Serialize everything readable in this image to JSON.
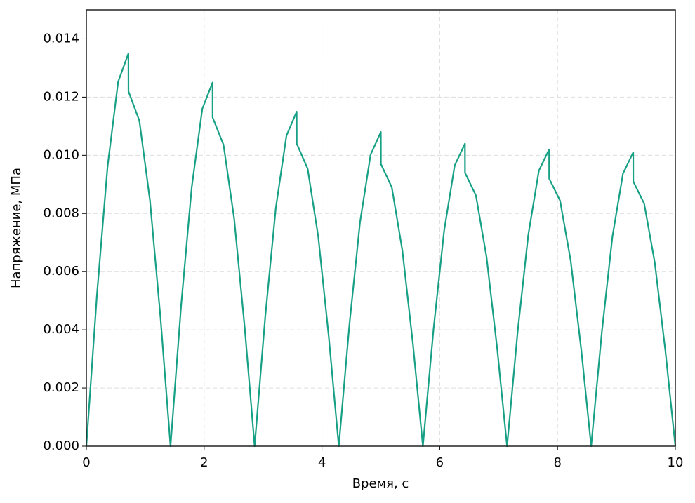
{
  "chart_data": {
    "type": "line",
    "xlabel": "Время, с",
    "ylabel": "Напряжение, МПа",
    "x": [
      0,
      0.18,
      0.36,
      0.54,
      0.714,
      0.715,
      0.9,
      1.08,
      1.26,
      1.429,
      1.609,
      1.789,
      1.969,
      2.143,
      2.144,
      2.329,
      2.509,
      2.689,
      2.857,
      3.037,
      3.217,
      3.397,
      3.571,
      3.572,
      3.757,
      3.937,
      4.117,
      4.286,
      4.466,
      4.646,
      4.826,
      5,
      5.001,
      5.186,
      5.366,
      5.546,
      5.714,
      5.894,
      6.074,
      6.254,
      6.428,
      6.429,
      6.614,
      6.794,
      6.974,
      7.143,
      7.323,
      7.503,
      7.683,
      7.857,
      7.858,
      8.043,
      8.223,
      8.403,
      8.571,
      8.751,
      8.931,
      9.111,
      9.285,
      9.286,
      9.471,
      9.651,
      9.831,
      10
    ],
    "series": [
      {
        "color": "#17a085",
        "values": [
          0,
          0.00521,
          0.00961,
          0.01253,
          0.0135,
          0.0122,
          0.01119,
          0.00845,
          0.00439,
          0,
          0.00483,
          0.0089,
          0.0116,
          0.0125,
          0.0113,
          0.01036,
          0.00783,
          0.00407,
          0,
          0.00444,
          0.00819,
          0.01067,
          0.0115,
          0.0104,
          0.00954,
          0.00721,
          0.00374,
          0,
          0.00417,
          0.00769,
          0.01002,
          0.0108,
          0.0097,
          0.0089,
          0.00672,
          0.00349,
          0,
          0.00401,
          0.0074,
          0.00965,
          0.0104,
          0.0094,
          0.00862,
          0.00651,
          0.00338,
          0,
          0.00394,
          0.00726,
          0.00947,
          0.0102,
          0.0092,
          0.00844,
          0.00638,
          0.00331,
          0,
          0.0039,
          0.00719,
          0.00937,
          0.0101,
          0.0091,
          0.00834,
          0.00631,
          0.00328,
          0
        ]
      }
    ],
    "xlim": [
      0,
      10
    ],
    "xticks": [
      0,
      2,
      4,
      6,
      8,
      10
    ],
    "ylim": [
      0,
      0.015
    ],
    "yticks": [
      {
        "value": 0,
        "label": "0.000"
      },
      0.002,
      0.004,
      0.006,
      0.008,
      {
        "value": 0.01,
        "label": "0.010"
      },
      0.012,
      0.014
    ],
    "grid": true
  }
}
